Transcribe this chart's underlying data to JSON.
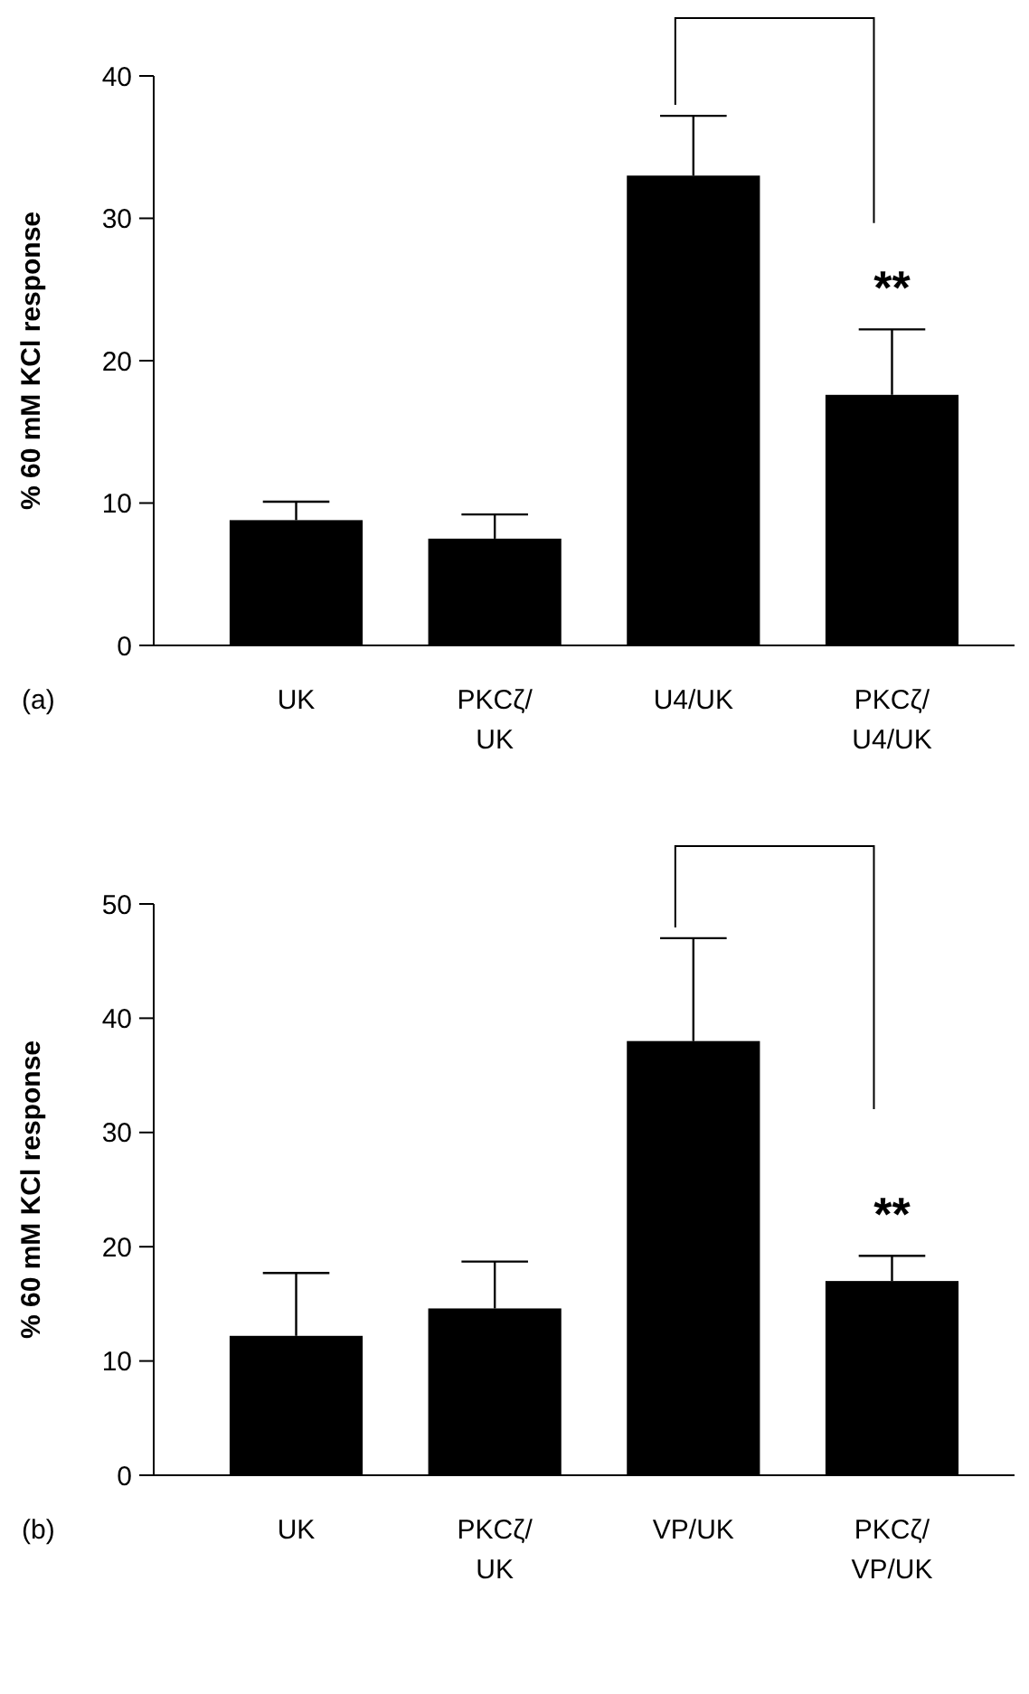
{
  "chart_data": [
    {
      "type": "bar",
      "ylabel": "% 60 mM KCl response",
      "categories": [
        "UK",
        "PKCζ/\nUK",
        "U4/UK",
        "PKCζ/\nU4/UK"
      ],
      "values": [
        8.8,
        7.5,
        33,
        17.6
      ],
      "color": "#000000",
      "errors": [
        [
          8.8,
          10.1
        ],
        [
          7.5,
          9.2
        ],
        [
          33,
          37.2
        ],
        [
          17.6,
          22.2
        ]
      ],
      "ylim": [
        0,
        40
      ],
      "yticks": [
        0,
        10,
        20,
        30,
        40
      ],
      "grid": false,
      "annotations": [
        "(a)",
        "**"
      ]
    },
    {
      "type": "bar",
      "ylabel": "% 60 mM KCl response",
      "categories": [
        "UK",
        "PKCζ/\nUK",
        "VP/UK",
        "PKCζ/\nVP/UK"
      ],
      "values": [
        12.2,
        14.6,
        38,
        17
      ],
      "color": "#000000",
      "errors": [
        [
          12.2,
          17.7
        ],
        [
          14.6,
          18.7
        ],
        [
          38,
          47
        ],
        [
          17,
          19.2
        ]
      ],
      "ylim": [
        0,
        50
      ],
      "yticks": [
        0,
        10,
        20,
        30,
        40,
        50
      ],
      "grid": false,
      "annotations": [
        "(b)",
        "**"
      ]
    }
  ]
}
